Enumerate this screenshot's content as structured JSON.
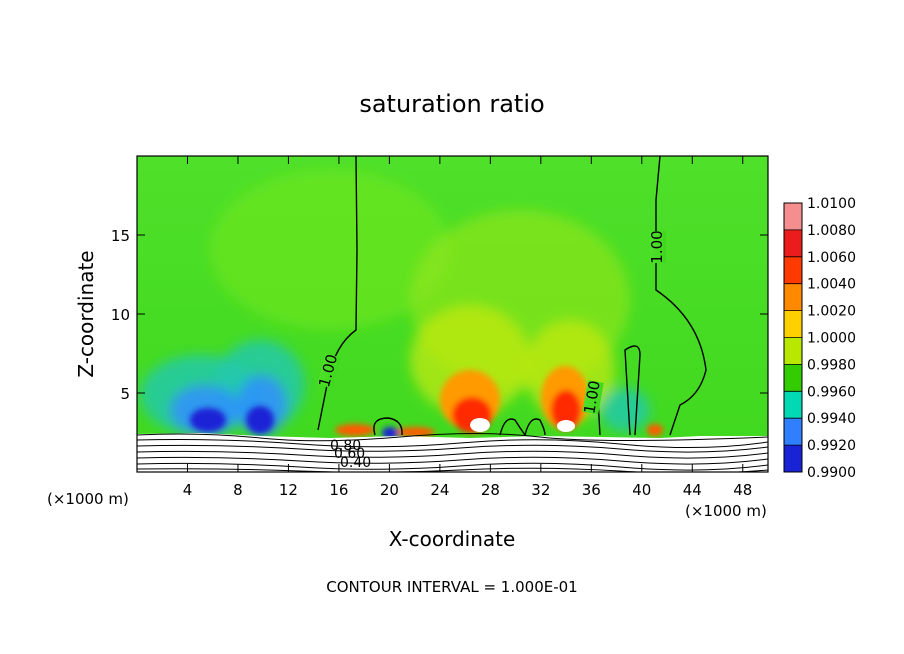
{
  "chart_data": {
    "type": "heatmap",
    "title": "saturation ratio",
    "xlabel": "X-coordinate",
    "ylabel": "Z-coordinate",
    "x_unit": "(×1000 m)",
    "x_unit_right": "(×1000 m)",
    "xlim": [
      0,
      50
    ],
    "ylim": [
      0,
      20
    ],
    "x_ticks": [
      4,
      8,
      12,
      16,
      20,
      24,
      28,
      32,
      36,
      40,
      44,
      48
    ],
    "y_ticks": [
      5,
      10,
      15
    ],
    "colorbar": {
      "levels": [
        "1.0100",
        "1.0080",
        "1.0060",
        "1.0040",
        "1.0020",
        "1.0000",
        "0.9980",
        "0.9960",
        "0.9940",
        "0.9920",
        "0.9900"
      ],
      "colors": [
        "#f58f8f",
        "#ec1c1c",
        "#ff3a00",
        "#ff8a00",
        "#ffd000",
        "#b8e800",
        "#33cc00",
        "#00d9b4",
        "#2f7fff",
        "#1a22d6",
        "#5a1aa0"
      ]
    },
    "contour_labels": [
      "1.00",
      "1.00",
      "1.00",
      "0.80",
      "0.60",
      "0.40"
    ],
    "footer": "CONTOUR INTERVAL = 1.000E-01"
  },
  "colors": {
    "background": "#44dd22",
    "frame": "#000000"
  }
}
